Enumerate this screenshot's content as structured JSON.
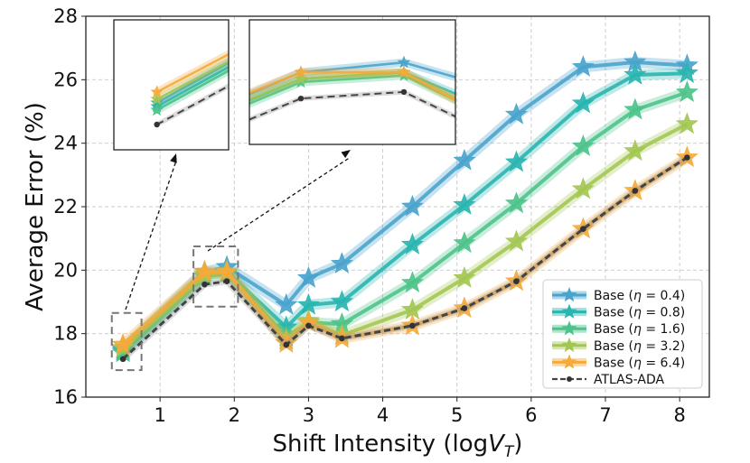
{
  "chart_data": {
    "type": "line",
    "title": "",
    "xlabel": "Shift Intensity (logV_T)",
    "xlabel_main": "Shift Intensity (log",
    "xlabel_var": "V",
    "xlabel_sub": "T",
    "xlabel_close": ")",
    "ylabel": "Average Error (%)",
    "xlim": [
      0.0,
      8.4
    ],
    "ylim": [
      16,
      28
    ],
    "xticks": [
      1,
      2,
      3,
      4,
      5,
      6,
      7,
      8
    ],
    "yticks": [
      16,
      18,
      20,
      22,
      24,
      26,
      28
    ],
    "grid": true,
    "legend_position": "lower-right",
    "series": [
      {
        "name": "Base (η = 0.4)",
        "legend_prefix": "Base (",
        "legend_var": "η",
        "legend_suffix": " = 0.4)",
        "color": "#4aa3cc",
        "x": [
          0.5,
          1.6,
          1.9,
          2.7,
          3.0,
          3.45,
          4.4,
          5.1,
          5.8,
          6.7,
          7.4,
          8.1
        ],
        "y": [
          17.5,
          19.95,
          20.1,
          18.9,
          19.75,
          20.2,
          22.0,
          23.45,
          24.9,
          26.4,
          26.55,
          26.45
        ]
      },
      {
        "name": "Base (η = 0.8)",
        "legend_prefix": "Base (",
        "legend_var": "η",
        "legend_suffix": " = 0.8)",
        "color": "#2ab5b0",
        "x": [
          0.5,
          1.6,
          1.9,
          2.7,
          3.0,
          3.45,
          4.4,
          5.1,
          5.8,
          6.7,
          7.4,
          8.1
        ],
        "y": [
          17.45,
          19.85,
          19.95,
          18.2,
          18.9,
          19.0,
          20.8,
          22.05,
          23.4,
          25.25,
          26.15,
          26.2
        ]
      },
      {
        "name": "Base (η = 1.6)",
        "legend_prefix": "Base (",
        "legend_var": "η",
        "legend_suffix": " = 1.6)",
        "color": "#4cc38a",
        "x": [
          0.5,
          1.6,
          1.9,
          2.7,
          3.0,
          3.45,
          4.4,
          5.1,
          5.8,
          6.7,
          7.4,
          8.1
        ],
        "y": [
          17.4,
          19.8,
          19.9,
          17.9,
          18.35,
          18.3,
          19.6,
          20.85,
          22.1,
          23.9,
          25.05,
          25.6
        ]
      },
      {
        "name": "Base (η = 3.2)",
        "legend_prefix": "Base (",
        "legend_var": "η",
        "legend_suffix": " = 3.2)",
        "color": "#a3c653",
        "x": [
          0.5,
          1.6,
          1.9,
          2.7,
          3.0,
          3.45,
          4.4,
          5.1,
          5.8,
          6.7,
          7.4,
          8.1
        ],
        "y": [
          17.55,
          19.85,
          19.95,
          17.8,
          18.4,
          17.95,
          18.75,
          19.75,
          20.9,
          22.55,
          23.75,
          24.6
        ]
      },
      {
        "name": "Base (η = 6.4)",
        "legend_prefix": "Base (",
        "legend_var": "η",
        "legend_suffix": " = 6.4)",
        "color": "#f5aa3a",
        "x": [
          0.5,
          1.6,
          1.9,
          2.7,
          3.0,
          3.45,
          4.4,
          5.1,
          5.8,
          6.7,
          7.4,
          8.1
        ],
        "y": [
          17.65,
          19.95,
          19.95,
          17.7,
          18.35,
          17.85,
          18.25,
          18.8,
          19.65,
          21.3,
          22.5,
          23.55
        ]
      },
      {
        "name": "ATLAS-ADA",
        "legend_prefix": "ATLAS-ADA",
        "legend_var": "",
        "legend_suffix": "",
        "color": "#444444",
        "dashed": true,
        "x": [
          0.5,
          1.6,
          1.9,
          2.7,
          3.0,
          3.45,
          4.4,
          5.1,
          5.8,
          6.7,
          7.4,
          8.1
        ],
        "y": [
          17.2,
          19.55,
          19.65,
          17.65,
          18.25,
          17.85,
          18.25,
          18.8,
          19.65,
          21.3,
          22.5,
          23.55
        ]
      }
    ],
    "insets": [
      {
        "name": "zoom-left",
        "xlim": [
          0.35,
          0.75
        ],
        "ylim": [
          16.85,
          18.65
        ]
      },
      {
        "name": "zoom-mid",
        "xlim": [
          1.45,
          2.05
        ],
        "ylim": [
          18.85,
          20.75
        ]
      }
    ]
  }
}
